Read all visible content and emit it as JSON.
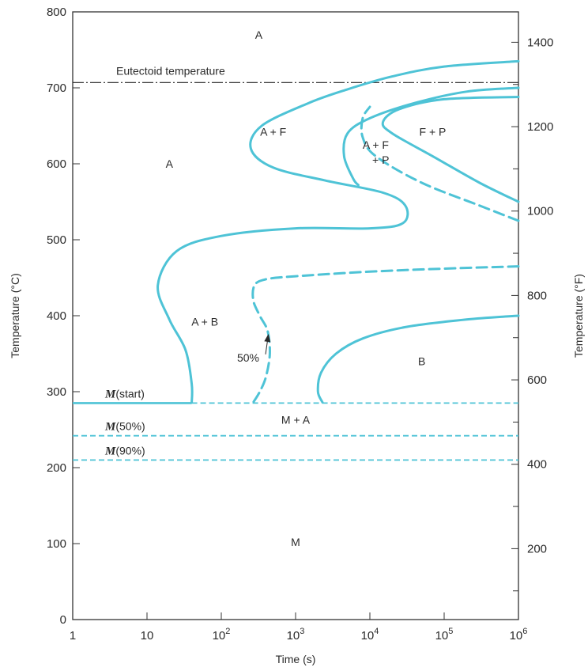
{
  "chart_data": {
    "type": "line",
    "title": "",
    "xlabel": "Time (s)",
    "ylabel_left": "Temperature (°C)",
    "ylabel_right": "Temperature (°F)",
    "x_scale": "log",
    "xlim": [
      1,
      1000000
    ],
    "ylim": [
      0,
      800
    ],
    "x_ticks": [
      {
        "value": 1,
        "base": "1",
        "exp": ""
      },
      {
        "value": 10,
        "base": "10",
        "exp": ""
      },
      {
        "value": 100,
        "base": "10",
        "exp": "2"
      },
      {
        "value": 1000,
        "base": "10",
        "exp": "3"
      },
      {
        "value": 10000,
        "base": "10",
        "exp": "4"
      },
      {
        "value": 100000,
        "base": "10",
        "exp": "5"
      },
      {
        "value": 1000000,
        "base": "10",
        "exp": "6"
      }
    ],
    "y_ticks_left": [
      0,
      100,
      200,
      300,
      400,
      500,
      600,
      700,
      800
    ],
    "y_ticks_right": [
      200,
      400,
      600,
      800,
      1000,
      1200,
      1400
    ],
    "y_minor_right": [
      100,
      300,
      500,
      700,
      900,
      1100,
      1300
    ],
    "color": "#4ec3d6",
    "reference_lines": [
      {
        "label": "Eutectoid temperature",
        "y": 707,
        "style": "dash-dot",
        "color": "#222222"
      }
    ],
    "horizontal_lines": [
      {
        "label_it": "M",
        "label_rest": "(start)",
        "y": 285,
        "solid_until_x": 40,
        "style": "dashed"
      },
      {
        "label_it": "M",
        "label_rest": "(50%)",
        "y": 242,
        "style": "dashed"
      },
      {
        "label_it": "M",
        "label_rest": "(90%)",
        "y": 210,
        "style": "dashed"
      }
    ],
    "series": [
      {
        "style": "solid",
        "points": [
          [
            1000000,
            735
          ],
          [
            100000,
            728
          ],
          [
            20000,
            715
          ],
          [
            5000,
            698
          ],
          [
            1500,
            680
          ],
          [
            350,
            650
          ],
          [
            250,
            620
          ],
          [
            500,
            595
          ],
          [
            2500,
            578
          ],
          [
            15000,
            562
          ],
          [
            30000,
            545
          ],
          [
            28000,
            522
          ],
          [
            10000,
            515
          ],
          [
            1000,
            515
          ],
          [
            100,
            505
          ],
          [
            25,
            485
          ],
          [
            14,
            440
          ],
          [
            20,
            395
          ],
          [
            33,
            355
          ],
          [
            40,
            310
          ],
          [
            40,
            286
          ]
        ]
      },
      {
        "style": "solid",
        "points": [
          [
            1000000,
            700
          ],
          [
            200000,
            695
          ],
          [
            40000,
            680
          ],
          [
            10000,
            660
          ],
          [
            5000,
            640
          ],
          [
            4500,
            610
          ],
          [
            6000,
            580
          ],
          [
            7000,
            572
          ]
        ]
      },
      {
        "style": "solid",
        "points": [
          [
            1000000,
            550
          ],
          [
            300000,
            575
          ],
          [
            70000,
            610
          ],
          [
            20000,
            640
          ],
          [
            15000,
            655
          ],
          [
            25000,
            672
          ],
          [
            100000,
            685
          ],
          [
            1000000,
            688
          ]
        ]
      },
      {
        "style": "dashed",
        "points": [
          [
            1000000,
            525
          ],
          [
            300000,
            545
          ],
          [
            50000,
            575
          ],
          [
            12000,
            610
          ],
          [
            8000,
            635
          ],
          [
            8000,
            660
          ],
          [
            10000,
            675
          ]
        ]
      },
      {
        "style": "dashed",
        "points": [
          [
            1000000,
            465
          ],
          [
            100000,
            462
          ],
          [
            10000,
            458
          ],
          [
            1000,
            452
          ],
          [
            400,
            448
          ],
          [
            280,
            440
          ],
          [
            270,
            420
          ],
          [
            330,
            400
          ],
          [
            420,
            380
          ],
          [
            450,
            350
          ],
          [
            400,
            320
          ],
          [
            330,
            300
          ],
          [
            270,
            286
          ]
        ]
      },
      {
        "style": "solid",
        "points": [
          [
            1000000,
            400
          ],
          [
            200000,
            395
          ],
          [
            30000,
            385
          ],
          [
            8000,
            370
          ],
          [
            3500,
            350
          ],
          [
            2200,
            325
          ],
          [
            2000,
            300
          ],
          [
            2300,
            286
          ]
        ]
      }
    ],
    "annotations": [
      {
        "text": "50%",
        "x": 230,
        "y": 345,
        "arrow_to": [
          430,
          375
        ]
      }
    ],
    "regions": [
      {
        "text": "A",
        "x": 320,
        "y": 770
      },
      {
        "text": "A",
        "x": 20,
        "y": 600
      },
      {
        "text": "A + F",
        "x": 500,
        "y": 642
      },
      {
        "text": "A + F",
        "x": 12000,
        "y": 625
      },
      {
        "text": "+ P",
        "x": 14000,
        "y": 605
      },
      {
        "text": "F + P",
        "x": 70000,
        "y": 642
      },
      {
        "text": "A + B",
        "x": 60,
        "y": 392
      },
      {
        "text": "B",
        "x": 50000,
        "y": 340
      },
      {
        "text": "M + A",
        "x": 1000,
        "y": 263
      },
      {
        "text": "M",
        "x": 1000,
        "y": 102
      }
    ]
  }
}
